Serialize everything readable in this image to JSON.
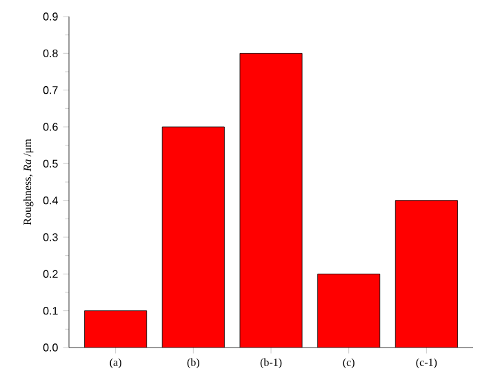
{
  "chart_data": {
    "type": "bar",
    "ylabel": "Roughness, *Ra* /μm",
    "categories": [
      "(a)",
      "(b)",
      "(b-1)",
      "(c)",
      "(c-1)"
    ],
    "values": [
      0.1,
      0.6,
      0.8,
      0.2,
      0.4
    ],
    "color": "#ff0000",
    "ylim": [
      0,
      0.9
    ],
    "yticks": [
      {
        "value": 0,
        "label": "0.0"
      },
      0.1,
      0.2,
      0.3,
      0.4,
      0.5,
      0.6,
      0.7,
      0.8,
      0.9
    ]
  }
}
